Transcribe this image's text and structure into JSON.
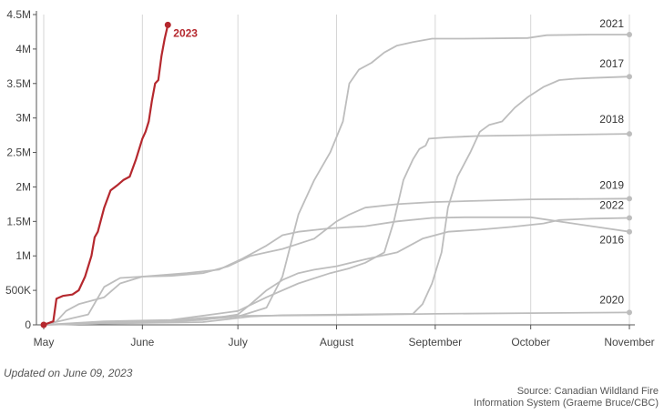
{
  "chart_data": {
    "type": "line",
    "title": "",
    "xlabel": "",
    "ylabel": "",
    "xlim": [
      "2023-05-01",
      "2023-11-01"
    ],
    "ylim": [
      0,
      4500000
    ],
    "x_tick_labels": [
      {
        "date": "2023-05-01",
        "label": "May"
      },
      {
        "date": "2023-06-01",
        "label": "June"
      },
      {
        "date": "2023-07-01",
        "label": "July"
      },
      {
        "date": "2023-08-01",
        "label": "August"
      },
      {
        "date": "2023-09-01",
        "label": "September"
      },
      {
        "date": "2023-10-01",
        "label": "October"
      },
      {
        "date": "2023-11-01",
        "label": "November"
      }
    ],
    "y_ticks": [
      {
        "value": 0,
        "label": "0"
      },
      {
        "value": 500000,
        "label": "500K"
      },
      {
        "value": 1000000,
        "label": "1M"
      },
      {
        "value": 1500000,
        "label": "1.5M"
      },
      {
        "value": 2000000,
        "label": "2M"
      },
      {
        "value": 2500000,
        "label": "2.5M"
      },
      {
        "value": 3000000,
        "label": "3M"
      },
      {
        "value": 3500000,
        "label": "3.5M"
      },
      {
        "value": 4000000,
        "label": "4M"
      },
      {
        "value": 4500000,
        "label": "4.5M"
      }
    ],
    "grid": "vertical",
    "highlight_color": "#b5282e",
    "other_color": "#bdbdbd",
    "series": [
      {
        "name": "2023",
        "color": "#b5282e",
        "points": [
          [
            "05-01",
            0
          ],
          [
            "05-04",
            50000
          ],
          [
            "05-05",
            380000
          ],
          [
            "05-07",
            420000
          ],
          [
            "05-10",
            440000
          ],
          [
            "05-12",
            500000
          ],
          [
            "05-14",
            700000
          ],
          [
            "05-16",
            1000000
          ],
          [
            "05-17",
            1270000
          ],
          [
            "05-18",
            1350000
          ],
          [
            "05-20",
            1700000
          ],
          [
            "05-22",
            1950000
          ],
          [
            "05-24",
            2020000
          ],
          [
            "05-26",
            2100000
          ],
          [
            "05-28",
            2150000
          ],
          [
            "05-30",
            2400000
          ],
          [
            "06-01",
            2700000
          ],
          [
            "06-02",
            2800000
          ],
          [
            "06-03",
            2950000
          ],
          [
            "06-04",
            3250000
          ],
          [
            "06-05",
            3500000
          ],
          [
            "06-06",
            3550000
          ],
          [
            "06-07",
            3900000
          ],
          [
            "06-08",
            4150000
          ],
          [
            "06-09",
            4350000
          ]
        ]
      },
      {
        "name": "2021",
        "color": "#bdbdbd",
        "points": [
          [
            "05-01",
            0
          ],
          [
            "05-20",
            30000
          ],
          [
            "06-15",
            60000
          ],
          [
            "07-01",
            120000
          ],
          [
            "07-10",
            250000
          ],
          [
            "07-15",
            700000
          ],
          [
            "07-20",
            1600000
          ],
          [
            "07-25",
            2100000
          ],
          [
            "07-30",
            2500000
          ],
          [
            "08-03",
            2950000
          ],
          [
            "08-05",
            3500000
          ],
          [
            "08-08",
            3700000
          ],
          [
            "08-12",
            3800000
          ],
          [
            "08-16",
            3950000
          ],
          [
            "08-20",
            4050000
          ],
          [
            "08-25",
            4100000
          ],
          [
            "08-31",
            4150000
          ],
          [
            "09-10",
            4150000
          ],
          [
            "09-30",
            4160000
          ],
          [
            "10-06",
            4200000
          ],
          [
            "10-20",
            4210000
          ],
          [
            "11-01",
            4210000
          ]
        ]
      },
      {
        "name": "2017",
        "color": "#bdbdbd",
        "points": [
          [
            "05-01",
            0
          ],
          [
            "05-20",
            20000
          ],
          [
            "06-20",
            40000
          ],
          [
            "07-05",
            120000
          ],
          [
            "07-15",
            140000
          ],
          [
            "08-05",
            150000
          ],
          [
            "08-25",
            160000
          ],
          [
            "08-28",
            300000
          ],
          [
            "08-31",
            600000
          ],
          [
            "09-03",
            1050000
          ],
          [
            "09-05",
            1700000
          ],
          [
            "09-08",
            2150000
          ],
          [
            "09-12",
            2500000
          ],
          [
            "09-15",
            2800000
          ],
          [
            "09-18",
            2900000
          ],
          [
            "09-22",
            2950000
          ],
          [
            "09-26",
            3150000
          ],
          [
            "09-30",
            3300000
          ],
          [
            "10-05",
            3450000
          ],
          [
            "10-10",
            3550000
          ],
          [
            "10-15",
            3570000
          ],
          [
            "10-20",
            3580000
          ],
          [
            "11-01",
            3600000
          ]
        ]
      },
      {
        "name": "2018",
        "color": "#bdbdbd",
        "points": [
          [
            "05-01",
            0
          ],
          [
            "05-20",
            50000
          ],
          [
            "06-10",
            70000
          ],
          [
            "07-01",
            200000
          ],
          [
            "07-10",
            400000
          ],
          [
            "07-20",
            600000
          ],
          [
            "07-30",
            750000
          ],
          [
            "08-05",
            820000
          ],
          [
            "08-10",
            900000
          ],
          [
            "08-16",
            1050000
          ],
          [
            "08-19",
            1500000
          ],
          [
            "08-22",
            2100000
          ],
          [
            "08-25",
            2400000
          ],
          [
            "08-27",
            2550000
          ],
          [
            "08-29",
            2600000
          ],
          [
            "08-30",
            2700000
          ],
          [
            "09-05",
            2720000
          ],
          [
            "09-15",
            2740000
          ],
          [
            "10-01",
            2750000
          ],
          [
            "11-01",
            2770000
          ]
        ]
      },
      {
        "name": "2019",
        "color": "#bdbdbd",
        "points": [
          [
            "05-01",
            0
          ],
          [
            "05-15",
            150000
          ],
          [
            "05-20",
            550000
          ],
          [
            "05-25",
            680000
          ],
          [
            "06-01",
            700000
          ],
          [
            "06-10",
            710000
          ],
          [
            "06-20",
            750000
          ],
          [
            "06-28",
            850000
          ],
          [
            "07-05",
            1000000
          ],
          [
            "07-10",
            1050000
          ],
          [
            "07-15",
            1100000
          ],
          [
            "07-25",
            1250000
          ],
          [
            "08-01",
            1500000
          ],
          [
            "08-05",
            1600000
          ],
          [
            "08-10",
            1700000
          ],
          [
            "08-20",
            1750000
          ],
          [
            "08-31",
            1780000
          ],
          [
            "09-15",
            1800000
          ],
          [
            "10-01",
            1820000
          ],
          [
            "11-01",
            1830000
          ]
        ]
      },
      {
        "name": "2022",
        "color": "#bdbdbd",
        "points": [
          [
            "05-01",
            0
          ],
          [
            "05-20",
            30000
          ],
          [
            "06-01",
            50000
          ],
          [
            "06-20",
            70000
          ],
          [
            "07-01",
            150000
          ],
          [
            "07-05",
            300000
          ],
          [
            "07-10",
            500000
          ],
          [
            "07-15",
            650000
          ],
          [
            "07-20",
            750000
          ],
          [
            "07-25",
            800000
          ],
          [
            "08-01",
            850000
          ],
          [
            "08-10",
            950000
          ],
          [
            "08-20",
            1050000
          ],
          [
            "08-28",
            1250000
          ],
          [
            "09-05",
            1350000
          ],
          [
            "09-15",
            1380000
          ],
          [
            "09-25",
            1420000
          ],
          [
            "10-05",
            1470000
          ],
          [
            "10-10",
            1520000
          ],
          [
            "10-20",
            1540000
          ],
          [
            "11-01",
            1550000
          ]
        ]
      },
      {
        "name": "2016",
        "color": "#bdbdbd",
        "points": [
          [
            "05-01",
            0
          ],
          [
            "05-05",
            50000
          ],
          [
            "05-08",
            200000
          ],
          [
            "05-12",
            300000
          ],
          [
            "05-20",
            400000
          ],
          [
            "05-25",
            600000
          ],
          [
            "06-01",
            700000
          ],
          [
            "06-15",
            750000
          ],
          [
            "06-25",
            800000
          ],
          [
            "07-02",
            950000
          ],
          [
            "07-10",
            1150000
          ],
          [
            "07-15",
            1300000
          ],
          [
            "07-20",
            1350000
          ],
          [
            "07-30",
            1400000
          ],
          [
            "08-10",
            1430000
          ],
          [
            "08-20",
            1500000
          ],
          [
            "08-31",
            1550000
          ],
          [
            "09-10",
            1560000
          ],
          [
            "10-01",
            1560000
          ],
          [
            "11-01",
            1350000
          ]
        ]
      },
      {
        "name": "2020",
        "color": "#bdbdbd",
        "points": [
          [
            "05-01",
            0
          ],
          [
            "05-20",
            20000
          ],
          [
            "06-10",
            60000
          ],
          [
            "06-20",
            100000
          ],
          [
            "07-01",
            130000
          ],
          [
            "08-01",
            140000
          ],
          [
            "09-01",
            160000
          ],
          [
            "10-01",
            170000
          ],
          [
            "11-01",
            180000
          ]
        ]
      }
    ],
    "end_labels": [
      {
        "series": "2021",
        "text": "2021"
      },
      {
        "series": "2017",
        "text": "2017"
      },
      {
        "series": "2018",
        "text": "2018"
      },
      {
        "series": "2019",
        "text": "2019"
      },
      {
        "series": "2022",
        "text": "2022"
      },
      {
        "series": "2016",
        "text": "2016"
      },
      {
        "series": "2020",
        "text": "2020"
      },
      {
        "series": "2023",
        "text": "2023"
      }
    ]
  },
  "footer": {
    "updated": "Updated on June 09, 2023",
    "source_line1": "Source: Canadian Wildland Fire",
    "source_line2": "Information System (Graeme Bruce/CBC)"
  }
}
